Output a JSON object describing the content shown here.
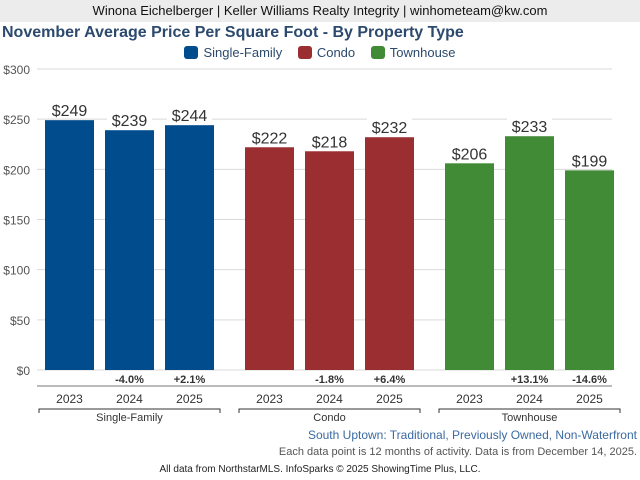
{
  "header": {
    "agent_line": "Winona Eichelberger | Keller Williams Realty Integrity | winhometeam@kw.com"
  },
  "chart_data": {
    "type": "bar",
    "title": "November Average Price Per Square Foot - By Property Type",
    "xlabel": "",
    "ylabel": "",
    "ylim": [
      0,
      300
    ],
    "yticks": [
      0,
      50,
      100,
      150,
      200,
      250,
      300
    ],
    "ytick_labels": [
      "$0",
      "$50",
      "$100",
      "$150",
      "$200",
      "$250",
      "$300"
    ],
    "grid": true,
    "legend_position": "top-center",
    "legend": [
      {
        "name": "Single-Family",
        "color": "#004c8c"
      },
      {
        "name": "Condo",
        "color": "#9a2e31"
      },
      {
        "name": "Townhouse",
        "color": "#418b36"
      }
    ],
    "groups": [
      {
        "name": "Single-Family",
        "color": "#004c8c",
        "categories": [
          "2023",
          "2024",
          "2025"
        ],
        "values": [
          249,
          239,
          244
        ],
        "value_labels": [
          "$249",
          "$239",
          "$244"
        ],
        "changes": [
          "",
          "-4.0%",
          "+2.1%"
        ]
      },
      {
        "name": "Condo",
        "color": "#9a2e31",
        "categories": [
          "2023",
          "2024",
          "2025"
        ],
        "values": [
          222,
          218,
          232
        ],
        "value_labels": [
          "$222",
          "$218",
          "$232"
        ],
        "changes": [
          "",
          "-1.8%",
          "+6.4%"
        ]
      },
      {
        "name": "Townhouse",
        "color": "#418b36",
        "categories": [
          "2023",
          "2024",
          "2025"
        ],
        "values": [
          206,
          233,
          199
        ],
        "value_labels": [
          "$206",
          "$233",
          "$199"
        ],
        "changes": [
          "",
          "+13.1%",
          "-14.6%"
        ]
      }
    ]
  },
  "footer": {
    "area": "South Uptown: Traditional, Previously Owned, Non-Waterfront",
    "note": "Each data point is 12 months of activity. Data is from December 14, 2025.",
    "credit": "All data from NorthstarMLS. InfoSparks © 2025 ShowingTime Plus, LLC."
  }
}
